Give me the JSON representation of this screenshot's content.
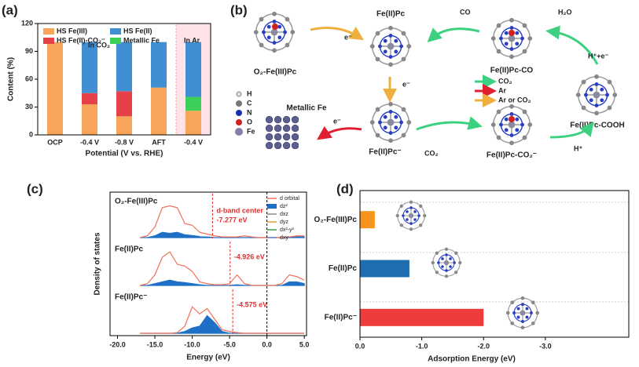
{
  "panel_labels": [
    "(a)",
    "(b)",
    "(c)",
    "(d)"
  ],
  "scheme": {
    "molecules": [
      "O₂-Fe(III)Pc",
      "Fe(II)Pc",
      "Fe(II)Pc-CO",
      "Fe(II)Pc-COOH",
      "Fe(II)Pc⁻",
      "Fe(II)Pc-CO₂⁻",
      "Metallic Fe"
    ],
    "arrow_labels": [
      "e⁻",
      "CO",
      "H₂O",
      "H⁺+e⁻",
      "e⁻",
      "e⁻",
      "CO₂",
      "H⁺"
    ],
    "legend": [
      "CO₂",
      "Ar",
      "Ar or CO₂"
    ],
    "atoms": [
      "H",
      "C",
      "N",
      "O",
      "Fe"
    ]
  },
  "chart_data": [
    {
      "type": "stacked_bar",
      "ylabel": "Content (%)",
      "xlabel": "Potential (V vs. RHE)",
      "categories": [
        "OCP",
        "-0.4 V",
        "-0.8 V",
        "AFT",
        "-0.4 V"
      ],
      "ylim": [
        0,
        120
      ],
      "yticks": [
        0,
        30,
        60,
        90,
        120
      ],
      "series": [
        {
          "name": "HS Fe(III)",
          "color": "#f7a558",
          "values": [
            100,
            33,
            20,
            51,
            26
          ]
        },
        {
          "name": "HS Fe(II)-CO₂⁻",
          "color": "#e64048",
          "values": [
            0,
            12,
            27,
            0,
            0
          ]
        },
        {
          "name": "Metallic Fe",
          "color": "#3ccf5a",
          "values": [
            0,
            0,
            0,
            0,
            15
          ]
        },
        {
          "name": "HS Fe(II)",
          "color": "#3f8fd2",
          "values": [
            0,
            55,
            53,
            49,
            59
          ]
        }
      ],
      "annotations": [
        "In CO₂",
        "In Ar"
      ]
    },
    {
      "type": "line",
      "xlabel": "Energy (eV)",
      "ylabel": "Density of states",
      "xlim": [
        -21,
        5.3
      ],
      "xticks": [
        {
          "value": -20,
          "label": "-20.0"
        },
        {
          "value": -15,
          "label": "-15.0"
        },
        {
          "value": -10,
          "label": "-10.0"
        },
        {
          "value": -5,
          "label": "-5.0"
        },
        {
          "value": 0,
          "label": "0.0"
        },
        {
          "value": 5,
          "label": "5.0"
        }
      ],
      "x": [
        -17,
        -16,
        -15,
        -14,
        -13,
        -12,
        -11,
        -10,
        -9,
        -8,
        -7,
        -6,
        -5,
        -4,
        -3,
        -2,
        -1,
        0,
        1,
        2,
        3,
        4,
        5
      ],
      "ylim": [
        0,
        1
      ],
      "vline": 0,
      "annotation": "d-band center",
      "legend": [
        {
          "name": "d orbital",
          "color": "#f0705a"
        },
        {
          "name": "dz²",
          "color": "#1f6fc6"
        },
        {
          "name": "dxz",
          "color": "#8a8a8a"
        },
        {
          "name": "dyz",
          "color": "#e0a040"
        },
        {
          "name": "dx²-y²",
          "color": "#3aa050"
        },
        {
          "name": "dxy",
          "color": "#6a8fd0"
        }
      ],
      "subplots": [
        {
          "label": "O₂-Fe(III)Pc",
          "d_band_center": -7.277,
          "center_label": "-7.277 eV",
          "series": [
            {
              "color": "#f0705a",
              "fill": false,
              "values": [
                0,
                0.05,
                0.3,
                0.85,
                0.9,
                0.85,
                0.4,
                0.35,
                0.15,
                0.1,
                0.05,
                0.02,
                0.02,
                0.02,
                0.05,
                0.02,
                0,
                0,
                0,
                0,
                0.02,
                0.05,
                0.05
              ]
            },
            {
              "color": "#1f6fc6",
              "fill": true,
              "values": [
                0,
                0,
                0.05,
                0.15,
                0.12,
                0.15,
                0.08,
                0.06,
                0.03,
                0.02,
                0,
                0,
                0,
                0,
                0,
                0,
                0,
                0,
                0,
                0,
                0,
                0.02,
                0.02
              ]
            }
          ]
        },
        {
          "label": "Fe(II)Pc",
          "d_band_center": -4.926,
          "center_label": "-4.926 eV",
          "series": [
            {
              "color": "#f0705a",
              "fill": false,
              "values": [
                0,
                0.05,
                0.3,
                0.8,
                0.95,
                0.6,
                0.55,
                0.4,
                0.1,
                0.05,
                0.02,
                0.02,
                0.05,
                0.3,
                0.05,
                0,
                0,
                0,
                0,
                0.05,
                0.3,
                0.25,
                0.15
              ]
            },
            {
              "color": "#1f6fc6",
              "fill": true,
              "values": [
                0,
                0,
                0.05,
                0.1,
                0.15,
                0.1,
                0.08,
                0.05,
                0.02,
                0,
                0,
                0,
                0,
                0.02,
                0,
                0,
                0,
                0,
                0,
                0,
                0.1,
                0.1,
                0.05
              ]
            }
          ]
        },
        {
          "label": "Fe(II)Pc⁻",
          "d_band_center": -4.575,
          "center_label": "-4.575 eV",
          "series": [
            {
              "color": "#f0705a",
              "fill": false,
              "values": [
                0,
                0,
                0,
                0,
                0,
                0.02,
                0.2,
                0.75,
                0.55,
                0.7,
                0.4,
                0.1,
                0.05,
                0.02,
                0,
                0,
                0,
                0,
                0,
                0,
                0,
                0,
                0
              ]
            },
            {
              "color": "#1f6fc6",
              "fill": true,
              "values": [
                0,
                0,
                0,
                0,
                0,
                0,
                0.05,
                0.15,
                0.2,
                0.5,
                0.3,
                0.05,
                0,
                0,
                0,
                0,
                0,
                0,
                0,
                0,
                0,
                0,
                0
              ]
            }
          ]
        }
      ]
    },
    {
      "type": "hbar",
      "xlabel": "Adsorption Energy (eV)",
      "categories": [
        "O₂-Fe(III)Pc",
        "Fe(II)Pc",
        "Fe(II)Pc⁻"
      ],
      "values": [
        -0.24,
        -0.8,
        -2.0
      ],
      "colors": [
        "#f7941d",
        "#1f6fb0",
        "#ee3b3b"
      ],
      "xlim": [
        0,
        -4.35
      ],
      "xticks": [
        {
          "value": 0,
          "label": "0.0"
        },
        {
          "value": -1,
          "label": "-1.0"
        },
        {
          "value": -2,
          "label": "-2.0"
        },
        {
          "value": -3,
          "label": "-3.0"
        }
      ]
    }
  ]
}
